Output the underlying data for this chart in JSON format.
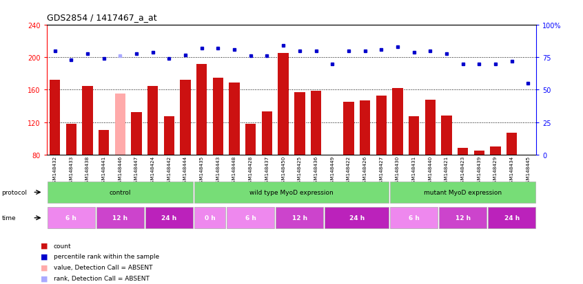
{
  "title": "GDS2854 / 1417467_a_at",
  "samples": [
    "GSM148432",
    "GSM148433",
    "GSM148438",
    "GSM148441",
    "GSM148446",
    "GSM148447",
    "GSM148424",
    "GSM148442",
    "GSM148444",
    "GSM148435",
    "GSM148443",
    "GSM148448",
    "GSM148428",
    "GSM148437",
    "GSM148450",
    "GSM148425",
    "GSM148436",
    "GSM148449",
    "GSM148422",
    "GSM148426",
    "GSM148427",
    "GSM148430",
    "GSM148431",
    "GSM148440",
    "GSM148421",
    "GSM148423",
    "GSM148439",
    "GSM148429",
    "GSM148434",
    "GSM148445"
  ],
  "counts": [
    172,
    118,
    165,
    110,
    155,
    132,
    165,
    127,
    172,
    192,
    175,
    169,
    118,
    133,
    205,
    157,
    159,
    80,
    145,
    147,
    153,
    162,
    127,
    148,
    128,
    88,
    85,
    90,
    107,
    80
  ],
  "ranks": [
    80,
    73,
    78,
    74,
    76,
    78,
    79,
    74,
    77,
    82,
    82,
    81,
    76,
    76,
    84,
    80,
    80,
    70,
    80,
    80,
    81,
    83,
    79,
    80,
    78,
    70,
    70,
    70,
    72,
    55
  ],
  "absent": [
    false,
    false,
    false,
    false,
    true,
    false,
    false,
    false,
    false,
    false,
    false,
    false,
    false,
    false,
    false,
    false,
    false,
    false,
    false,
    false,
    false,
    false,
    false,
    false,
    false,
    false,
    false,
    false,
    false,
    false
  ],
  "bar_color_normal": "#cc1111",
  "bar_color_absent": "#ffaaaa",
  "rank_color": "#0000cc",
  "rank_color_absent": "#aaaaff",
  "ylim_left": [
    80,
    240
  ],
  "ylim_right": [
    0,
    100
  ],
  "yticks_left": [
    80,
    120,
    160,
    200,
    240
  ],
  "yticks_right": [
    0,
    25,
    50,
    75,
    100
  ],
  "grid_lines": [
    120,
    160,
    200
  ],
  "prot_groups": [
    {
      "label": "control",
      "start": 0,
      "end": 9
    },
    {
      "label": "wild type MyoD expression",
      "start": 9,
      "end": 21
    },
    {
      "label": "mutant MyoD expression",
      "start": 21,
      "end": 30
    }
  ],
  "time_groups": [
    {
      "label": "6 h",
      "start": 0,
      "end": 3
    },
    {
      "label": "12 h",
      "start": 3,
      "end": 6
    },
    {
      "label": "24 h",
      "start": 6,
      "end": 9
    },
    {
      "label": "0 h",
      "start": 9,
      "end": 11
    },
    {
      "label": "6 h",
      "start": 11,
      "end": 14
    },
    {
      "label": "12 h",
      "start": 14,
      "end": 17
    },
    {
      "label": "24 h",
      "start": 17,
      "end": 21
    },
    {
      "label": "6 h",
      "start": 21,
      "end": 24
    },
    {
      "label": "12 h",
      "start": 24,
      "end": 27
    },
    {
      "label": "24 h",
      "start": 27,
      "end": 30
    }
  ],
  "time_colors": {
    "6 h": "#ee88ee",
    "12 h": "#cc44cc",
    "24 h": "#bb22bb",
    "0 h": "#ee88ee"
  },
  "legend_items": [
    {
      "label": "count",
      "color": "#cc1111"
    },
    {
      "label": "percentile rank within the sample",
      "color": "#0000cc"
    },
    {
      "label": "value, Detection Call = ABSENT",
      "color": "#ffaaaa"
    },
    {
      "label": "rank, Detection Call = ABSENT",
      "color": "#aaaaff"
    }
  ]
}
